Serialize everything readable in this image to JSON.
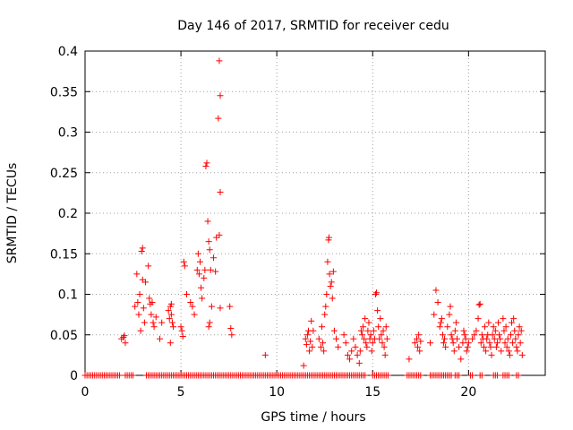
{
  "chart_data": {
    "type": "scatter",
    "title": "Day 146 of 2017, SRMTID for receiver cedu",
    "xlabel": "GPS time / hours",
    "ylabel": "SRMTID / TECUs",
    "xlim": [
      0,
      24
    ],
    "ylim": [
      0,
      0.4
    ],
    "xticks": [
      0,
      5,
      10,
      15,
      20
    ],
    "yticks": [
      0,
      0.05,
      0.1,
      0.15,
      0.2,
      0.25,
      0.3,
      0.35,
      0.4
    ],
    "grid": true,
    "marker": "+",
    "color": "#ff0000",
    "series": [
      {
        "name": "SRMTID",
        "points": [
          [
            1.9,
            0.045
          ],
          [
            2.0,
            0.047
          ],
          [
            2.05,
            0.049
          ],
          [
            2.1,
            0.04
          ],
          [
            2.6,
            0.085
          ],
          [
            2.7,
            0.125
          ],
          [
            2.75,
            0.09
          ],
          [
            2.8,
            0.075
          ],
          [
            2.85,
            0.1
          ],
          [
            2.9,
            0.055
          ],
          [
            2.95,
            0.153
          ],
          [
            3.0,
            0.157
          ],
          [
            3.0,
            0.118
          ],
          [
            3.05,
            0.083
          ],
          [
            3.1,
            0.065
          ],
          [
            3.15,
            0.115
          ],
          [
            3.3,
            0.135
          ],
          [
            3.35,
            0.095
          ],
          [
            3.4,
            0.088
          ],
          [
            3.45,
            0.075
          ],
          [
            3.5,
            0.09
          ],
          [
            3.55,
            0.065
          ],
          [
            3.6,
            0.06
          ],
          [
            3.7,
            0.072
          ],
          [
            3.9,
            0.045
          ],
          [
            4.0,
            0.065
          ],
          [
            4.35,
            0.08
          ],
          [
            4.4,
            0.07
          ],
          [
            4.45,
            0.085
          ],
          [
            4.5,
            0.075
          ],
          [
            4.55,
            0.065
          ],
          [
            4.6,
            0.06
          ],
          [
            4.45,
            0.04
          ],
          [
            4.5,
            0.088
          ],
          [
            5.0,
            0.06
          ],
          [
            5.05,
            0.055
          ],
          [
            5.1,
            0.048
          ],
          [
            5.15,
            0.14
          ],
          [
            5.2,
            0.135
          ],
          [
            5.3,
            0.1
          ],
          [
            5.5,
            0.09
          ],
          [
            5.6,
            0.085
          ],
          [
            5.7,
            0.075
          ],
          [
            5.85,
            0.13
          ],
          [
            5.9,
            0.15
          ],
          [
            5.95,
            0.125
          ],
          [
            6.0,
            0.14
          ],
          [
            6.05,
            0.108
          ],
          [
            6.1,
            0.095
          ],
          [
            6.2,
            0.12
          ],
          [
            6.25,
            0.13
          ],
          [
            6.3,
            0.258
          ],
          [
            6.35,
            0.262
          ],
          [
            6.4,
            0.19
          ],
          [
            6.45,
            0.165
          ],
          [
            6.5,
            0.155
          ],
          [
            6.55,
            0.13
          ],
          [
            6.6,
            0.085
          ],
          [
            6.45,
            0.06
          ],
          [
            6.5,
            0.065
          ],
          [
            6.7,
            0.145
          ],
          [
            6.8,
            0.128
          ],
          [
            6.85,
            0.17
          ],
          [
            7.0,
            0.388
          ],
          [
            7.05,
            0.345
          ],
          [
            6.95,
            0.317
          ],
          [
            7.05,
            0.226
          ],
          [
            7.0,
            0.173
          ],
          [
            7.05,
            0.083
          ],
          [
            7.55,
            0.085
          ],
          [
            7.6,
            0.058
          ],
          [
            7.65,
            0.05
          ],
          [
            9.4,
            0.025
          ],
          [
            11.4,
            0.012
          ],
          [
            11.5,
            0.045
          ],
          [
            11.55,
            0.038
          ],
          [
            11.6,
            0.05
          ],
          [
            11.65,
            0.055
          ],
          [
            11.7,
            0.03
          ],
          [
            11.75,
            0.042
          ],
          [
            11.8,
            0.067
          ],
          [
            11.85,
            0.035
          ],
          [
            11.9,
            0.055
          ],
          [
            12.2,
            0.045
          ],
          [
            12.3,
            0.035
          ],
          [
            12.35,
            0.06
          ],
          [
            12.4,
            0.04
          ],
          [
            12.45,
            0.03
          ],
          [
            12.5,
            0.075
          ],
          [
            12.55,
            0.085
          ],
          [
            12.6,
            0.1
          ],
          [
            12.65,
            0.14
          ],
          [
            12.7,
            0.167
          ],
          [
            12.72,
            0.17
          ],
          [
            12.75,
            0.125
          ],
          [
            12.8,
            0.11
          ],
          [
            12.85,
            0.115
          ],
          [
            12.9,
            0.095
          ],
          [
            12.95,
            0.128
          ],
          [
            13.0,
            0.055
          ],
          [
            13.1,
            0.045
          ],
          [
            13.2,
            0.035
          ],
          [
            13.5,
            0.05
          ],
          [
            13.6,
            0.04
          ],
          [
            13.7,
            0.025
          ],
          [
            13.8,
            0.02
          ],
          [
            13.9,
            0.03
          ],
          [
            14.0,
            0.045
          ],
          [
            14.1,
            0.035
          ],
          [
            14.2,
            0.025
          ],
          [
            14.3,
            0.015
          ],
          [
            14.35,
            0.03
          ],
          [
            14.4,
            0.055
          ],
          [
            14.45,
            0.05
          ],
          [
            14.5,
            0.06
          ],
          [
            14.55,
            0.045
          ],
          [
            14.6,
            0.07
          ],
          [
            14.65,
            0.04
          ],
          [
            14.7,
            0.035
          ],
          [
            14.75,
            0.055
          ],
          [
            14.8,
            0.065
          ],
          [
            14.85,
            0.045
          ],
          [
            14.9,
            0.05
          ],
          [
            14.95,
            0.03
          ],
          [
            15.0,
            0.04
          ],
          [
            15.05,
            0.055
          ],
          [
            15.1,
            0.045
          ],
          [
            15.15,
            0.1
          ],
          [
            15.2,
            0.102
          ],
          [
            15.25,
            0.08
          ],
          [
            15.3,
            0.06
          ],
          [
            15.35,
            0.045
          ],
          [
            15.4,
            0.07
          ],
          [
            15.45,
            0.05
          ],
          [
            15.5,
            0.04
          ],
          [
            15.55,
            0.055
          ],
          [
            15.6,
            0.035
          ],
          [
            15.65,
            0.025
          ],
          [
            15.7,
            0.06
          ],
          [
            15.75,
            0.045
          ],
          [
            16.9,
            0.02
          ],
          [
            17.2,
            0.04
          ],
          [
            17.3,
            0.045
          ],
          [
            17.35,
            0.035
          ],
          [
            17.4,
            0.05
          ],
          [
            17.45,
            0.03
          ],
          [
            17.5,
            0.042
          ],
          [
            18.0,
            0.04
          ],
          [
            18.2,
            0.075
          ],
          [
            18.3,
            0.105
          ],
          [
            18.4,
            0.09
          ],
          [
            18.5,
            0.06
          ],
          [
            18.55,
            0.065
          ],
          [
            18.6,
            0.07
          ],
          [
            18.65,
            0.05
          ],
          [
            18.7,
            0.04
          ],
          [
            18.75,
            0.045
          ],
          [
            18.8,
            0.035
          ],
          [
            18.9,
            0.06
          ],
          [
            19.0,
            0.075
          ],
          [
            19.05,
            0.085
          ],
          [
            19.1,
            0.05
          ],
          [
            19.15,
            0.045
          ],
          [
            19.2,
            0.04
          ],
          [
            19.25,
            0.03
          ],
          [
            19.3,
            0.055
          ],
          [
            19.35,
            0.065
          ],
          [
            19.4,
            0.045
          ],
          [
            19.5,
            0.035
          ],
          [
            19.6,
            0.02
          ],
          [
            19.7,
            0.04
          ],
          [
            19.75,
            0.055
          ],
          [
            19.8,
            0.05
          ],
          [
            19.85,
            0.045
          ],
          [
            19.9,
            0.03
          ],
          [
            19.95,
            0.035
          ],
          [
            20.0,
            0.04
          ],
          [
            20.2,
            0.045
          ],
          [
            20.3,
            0.05
          ],
          [
            20.4,
            0.055
          ],
          [
            20.5,
            0.07
          ],
          [
            20.55,
            0.087
          ],
          [
            20.6,
            0.088
          ],
          [
            20.65,
            0.04
          ],
          [
            20.7,
            0.05
          ],
          [
            20.75,
            0.045
          ],
          [
            20.8,
            0.035
          ],
          [
            20.85,
            0.06
          ],
          [
            20.9,
            0.03
          ],
          [
            20.95,
            0.045
          ],
          [
            21.0,
            0.05
          ],
          [
            21.05,
            0.065
          ],
          [
            21.1,
            0.04
          ],
          [
            21.15,
            0.035
          ],
          [
            21.2,
            0.025
          ],
          [
            21.25,
            0.05
          ],
          [
            21.3,
            0.06
          ],
          [
            21.35,
            0.045
          ],
          [
            21.4,
            0.055
          ],
          [
            21.45,
            0.035
          ],
          [
            21.5,
            0.04
          ],
          [
            21.55,
            0.065
          ],
          [
            21.6,
            0.05
          ],
          [
            21.65,
            0.045
          ],
          [
            21.7,
            0.03
          ],
          [
            21.8,
            0.07
          ],
          [
            21.85,
            0.055
          ],
          [
            21.9,
            0.04
          ],
          [
            21.95,
            0.06
          ],
          [
            22.0,
            0.035
          ],
          [
            22.05,
            0.045
          ],
          [
            22.1,
            0.03
          ],
          [
            22.15,
            0.025
          ],
          [
            22.2,
            0.05
          ],
          [
            22.25,
            0.065
          ],
          [
            22.3,
            0.04
          ],
          [
            22.35,
            0.07
          ],
          [
            22.4,
            0.055
          ],
          [
            22.45,
            0.045
          ],
          [
            22.5,
            0.035
          ],
          [
            22.55,
            0.03
          ],
          [
            22.6,
            0.05
          ],
          [
            22.65,
            0.06
          ],
          [
            22.7,
            0.04
          ],
          [
            22.75,
            0.055
          ],
          [
            22.8,
            0.025
          ]
        ]
      }
    ],
    "zero_ranges": [
      [
        0.0,
        1.8
      ],
      [
        2.1,
        2.5
      ],
      [
        3.2,
        11.3
      ],
      [
        11.4,
        14.6
      ],
      [
        15.0,
        15.8
      ],
      [
        16.8,
        17.2
      ],
      [
        17.3,
        17.5
      ],
      [
        18.0,
        19.1
      ],
      [
        19.3,
        19.5
      ],
      [
        20.1,
        20.2
      ],
      [
        20.6,
        20.7
      ],
      [
        21.3,
        21.5
      ],
      [
        21.8,
        22.1
      ],
      [
        22.5,
        22.6
      ]
    ],
    "zero_step": 0.1
  }
}
